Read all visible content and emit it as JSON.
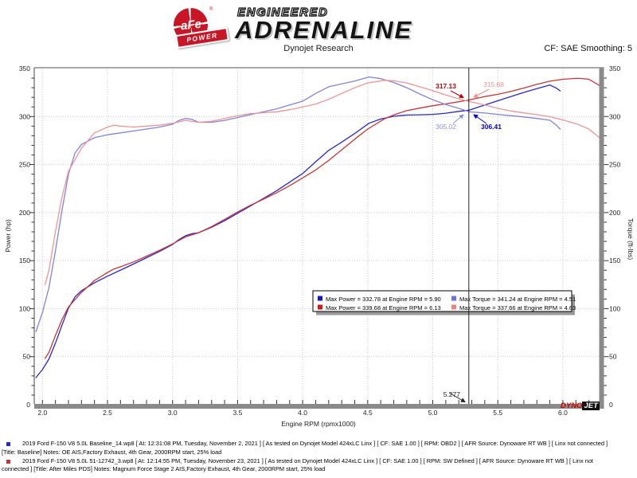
{
  "header": {
    "brand": {
      "badge_text": "aFe",
      "badge_banner": "POWER",
      "reg_mark": "®",
      "line1": "ENGINEERED",
      "line2": "ADRENALINE"
    },
    "title": "Dynojet Research",
    "correction": "CF: SAE Smoothing: 5"
  },
  "chart_data": {
    "type": "line",
    "x_axis": {
      "label": "Engine RPM (rpmx1000)",
      "min": 1.94,
      "max": 6.31,
      "minor_step": 0.1,
      "ticks": [
        "2.0",
        "2.5",
        "3.0",
        "3.5",
        "4.0",
        "4.5",
        "5.0",
        "5.5",
        "6.0"
      ]
    },
    "y_left": {
      "label": "Power (hp)",
      "min": 0,
      "max": 350,
      "minor_step": 10,
      "ticks": [
        0,
        50,
        100,
        150,
        200,
        250,
        300,
        350
      ]
    },
    "y_right": {
      "label": "Torque (ft-lbs)",
      "min": 0,
      "max": 350,
      "minor_step": 10,
      "ticks": [
        0,
        50,
        100,
        150,
        200,
        250,
        300,
        350
      ]
    },
    "grid": "dotted",
    "series": [
      {
        "name": "baseline-power",
        "color": "#2828cc",
        "points": [
          [
            1.95,
            28.2
          ],
          [
            2.0,
            36.6
          ],
          [
            2.05,
            47.6
          ],
          [
            2.1,
            64
          ],
          [
            2.15,
            82.7
          ],
          [
            2.2,
            100.5
          ],
          [
            2.25,
            112.2
          ],
          [
            2.3,
            118.7
          ],
          [
            2.4,
            127
          ],
          [
            2.5,
            133.8
          ],
          [
            2.6,
            140.1
          ],
          [
            2.7,
            146.5
          ],
          [
            2.8,
            153
          ],
          [
            2.9,
            159.6
          ],
          [
            3.0,
            166.8
          ],
          [
            3.05,
            171.9
          ],
          [
            3.1,
            175.9
          ],
          [
            3.15,
            178.1
          ],
          [
            3.2,
            179.1
          ],
          [
            3.3,
            184.7
          ],
          [
            3.4,
            191.6
          ],
          [
            3.5,
            199.3
          ],
          [
            3.6,
            207
          ],
          [
            3.7,
            214.9
          ],
          [
            3.8,
            222.8
          ],
          [
            3.9,
            231.7
          ],
          [
            4.0,
            240.7
          ],
          [
            4.1,
            252.9
          ],
          [
            4.2,
            264.7
          ],
          [
            4.3,
            273.4
          ],
          [
            4.4,
            282.3
          ],
          [
            4.51,
            293
          ],
          [
            4.6,
            297.4
          ],
          [
            4.7,
            300.2
          ],
          [
            4.8,
            301.6
          ],
          [
            4.9,
            301.8
          ],
          [
            5.0,
            302.2
          ],
          [
            5.1,
            303.5
          ],
          [
            5.2,
            305.4
          ],
          [
            5.28,
            306.6
          ],
          [
            5.4,
            312.1
          ],
          [
            5.5,
            316.4
          ],
          [
            5.6,
            320.8
          ],
          [
            5.7,
            325.1
          ],
          [
            5.8,
            329.1
          ],
          [
            5.9,
            332.8
          ],
          [
            5.95,
            329.6
          ],
          [
            5.98,
            326.7
          ]
        ]
      },
      {
        "name": "afe-power",
        "color": "#cc3333",
        "points": [
          [
            2.02,
            48.1
          ],
          [
            2.05,
            54.6
          ],
          [
            2.1,
            72
          ],
          [
            2.15,
            88.4
          ],
          [
            2.2,
            101.8
          ],
          [
            2.3,
            116.9
          ],
          [
            2.4,
            129.3
          ],
          [
            2.5,
            137.6
          ],
          [
            2.55,
            141.3
          ],
          [
            2.6,
            143.6
          ],
          [
            2.7,
            148.6
          ],
          [
            2.8,
            154.6
          ],
          [
            2.9,
            160.7
          ],
          [
            3.0,
            167.4
          ],
          [
            3.1,
            174.7
          ],
          [
            3.2,
            179.1
          ],
          [
            3.3,
            185.4
          ],
          [
            3.4,
            192.9
          ],
          [
            3.5,
            200.6
          ],
          [
            3.6,
            207.7
          ],
          [
            3.7,
            214.1
          ],
          [
            3.8,
            220.7
          ],
          [
            3.9,
            228
          ],
          [
            4.0,
            236.1
          ],
          [
            4.1,
            244.3
          ],
          [
            4.2,
            254.3
          ],
          [
            4.3,
            265.3
          ],
          [
            4.4,
            276.4
          ],
          [
            4.5,
            287
          ],
          [
            4.63,
            297.7
          ],
          [
            4.7,
            301.7
          ],
          [
            4.8,
            306.1
          ],
          [
            4.9,
            308.8
          ],
          [
            5.0,
            311.3
          ],
          [
            5.1,
            313.2
          ],
          [
            5.2,
            315.4
          ],
          [
            5.28,
            317.3
          ],
          [
            5.4,
            320.8
          ],
          [
            5.5,
            323.1
          ],
          [
            5.6,
            326.1
          ],
          [
            5.7,
            329.7
          ],
          [
            5.8,
            333.5
          ],
          [
            5.9,
            336.8
          ],
          [
            6.0,
            338.8
          ],
          [
            6.1,
            339.7
          ],
          [
            6.13,
            339.7
          ],
          [
            6.2,
            338.8
          ],
          [
            6.28,
            332.4
          ]
        ]
      },
      {
        "name": "baseline-torque",
        "color": "#8282dd",
        "points": [
          [
            1.95,
            76
          ],
          [
            2.0,
            96
          ],
          [
            2.05,
            122
          ],
          [
            2.1,
            160
          ],
          [
            2.15,
            202
          ],
          [
            2.2,
            240
          ],
          [
            2.25,
            262
          ],
          [
            2.3,
            271
          ],
          [
            2.4,
            278
          ],
          [
            2.5,
            281
          ],
          [
            2.6,
            283
          ],
          [
            2.7,
            285
          ],
          [
            2.8,
            287
          ],
          [
            2.9,
            289
          ],
          [
            3.0,
            292
          ],
          [
            3.05,
            296
          ],
          [
            3.1,
            298
          ],
          [
            3.15,
            297
          ],
          [
            3.2,
            294
          ],
          [
            3.3,
            294
          ],
          [
            3.4,
            296
          ],
          [
            3.5,
            299
          ],
          [
            3.6,
            302
          ],
          [
            3.7,
            305
          ],
          [
            3.8,
            308
          ],
          [
            3.9,
            312
          ],
          [
            4.0,
            316
          ],
          [
            4.1,
            324
          ],
          [
            4.2,
            331
          ],
          [
            4.3,
            334
          ],
          [
            4.4,
            337
          ],
          [
            4.51,
            341.2
          ],
          [
            4.6,
            339.5
          ],
          [
            4.7,
            335.5
          ],
          [
            4.8,
            330
          ],
          [
            4.9,
            323.5
          ],
          [
            5.0,
            317.5
          ],
          [
            5.1,
            312.5
          ],
          [
            5.2,
            308.5
          ],
          [
            5.28,
            305
          ],
          [
            5.4,
            303.6
          ],
          [
            5.5,
            302.2
          ],
          [
            5.6,
            300.9
          ],
          [
            5.7,
            299.6
          ],
          [
            5.8,
            298
          ],
          [
            5.9,
            296.2
          ],
          [
            5.95,
            291
          ],
          [
            5.98,
            287
          ]
        ]
      },
      {
        "name": "afe-torque",
        "color": "#ef9494",
        "points": [
          [
            2.02,
            125
          ],
          [
            2.05,
            140
          ],
          [
            2.1,
            180
          ],
          [
            2.15,
            216
          ],
          [
            2.2,
            243
          ],
          [
            2.3,
            267
          ],
          [
            2.4,
            283
          ],
          [
            2.5,
            289
          ],
          [
            2.55,
            291
          ],
          [
            2.6,
            290
          ],
          [
            2.7,
            289
          ],
          [
            2.8,
            290
          ],
          [
            2.9,
            291
          ],
          [
            3.0,
            293
          ],
          [
            3.1,
            296
          ],
          [
            3.2,
            294
          ],
          [
            3.3,
            295
          ],
          [
            3.4,
            298
          ],
          [
            3.5,
            301
          ],
          [
            3.6,
            303
          ],
          [
            3.7,
            304
          ],
          [
            3.8,
            305
          ],
          [
            3.9,
            307
          ],
          [
            4.0,
            310
          ],
          [
            4.1,
            313
          ],
          [
            4.2,
            318
          ],
          [
            4.3,
            324
          ],
          [
            4.4,
            330
          ],
          [
            4.5,
            335
          ],
          [
            4.63,
            337.7
          ],
          [
            4.7,
            337.2
          ],
          [
            4.8,
            335
          ],
          [
            4.9,
            331
          ],
          [
            5.0,
            327
          ],
          [
            5.1,
            322.5
          ],
          [
            5.2,
            318.5
          ],
          [
            5.28,
            315.7
          ],
          [
            5.4,
            312
          ],
          [
            5.5,
            308.5
          ],
          [
            5.6,
            305.8
          ],
          [
            5.7,
            303.8
          ],
          [
            5.8,
            302
          ],
          [
            5.9,
            299.8
          ],
          [
            6.0,
            296.5
          ],
          [
            6.1,
            292.5
          ],
          [
            6.13,
            291.1
          ],
          [
            6.2,
            287
          ],
          [
            6.28,
            278
          ]
        ]
      }
    ],
    "legend": {
      "position": "center-right",
      "entries": [
        {
          "color": "#1414d6",
          "label": "Max Power = 332.78 at Engine RPM = 5.90"
        },
        {
          "color": "#7070dd",
          "label": "Max Torque = 341.24 at Engine RPM = 4.51"
        },
        {
          "color": "#dd1414",
          "label": "Max Power = 339.68 at Engine RPM = 6.13"
        },
        {
          "color": "#ee8080",
          "label": "Max Torque = 337.66 at Engine RPM = 4.63"
        }
      ]
    },
    "cursor": {
      "rpm": 5.277,
      "label": "5.277",
      "readouts": [
        {
          "value": "317.13",
          "color": "#c00000",
          "bold": true
        },
        {
          "value": "315.68",
          "color": "#ef8f8f",
          "bold": false
        },
        {
          "value": "305.02",
          "color": "#9090e0",
          "bold": false
        },
        {
          "value": "306.41",
          "color": "#0000c8",
          "bold": true
        }
      ]
    }
  },
  "watermark": {
    "part1": "DYNO",
    "part2": "JET"
  },
  "footer": {
    "runs": [
      {
        "bullet_color": "#2828cc",
        "line1": "2019 Ford F-150 V8 5.0L Baseline_14.wp8 [ At: 12:31:08 PM, Tuesday, November 2, 2021 ] [ As tested on Dynojet Model 424xLC Linx ] [ CF: SAE 1.00 ] [ RPM: OBD2 ] [ AFR Source: Dynoware RT WB ] [ Linx not connected ]",
        "line2": "[Title: Baseline]  Notes: OE AIS,Factory Exhaust, 4th Gear, 2000RPM start, 25% load"
      },
      {
        "bullet_color": "#cc3333",
        "line1": "2019 Ford F-150 V8 5.0L 51-12742_3.wp8 [ At: 12:14:55 PM, Tuesday, November 23, 2021 ] [ As tested on Dynojet Model 424xLC Linx ] [ CF: SAE 1.00 ] [ RPM: SW Defined ] [ AFR Source: Dynoware RT WB ] [ Linx not",
        "line2": "connected ] [Title: After Miles PDS]  Notes: Magnum Force Stage 2  AIS,Factory Exhaust, 4th Gear, 2000RPM start, 25% load"
      }
    ]
  }
}
